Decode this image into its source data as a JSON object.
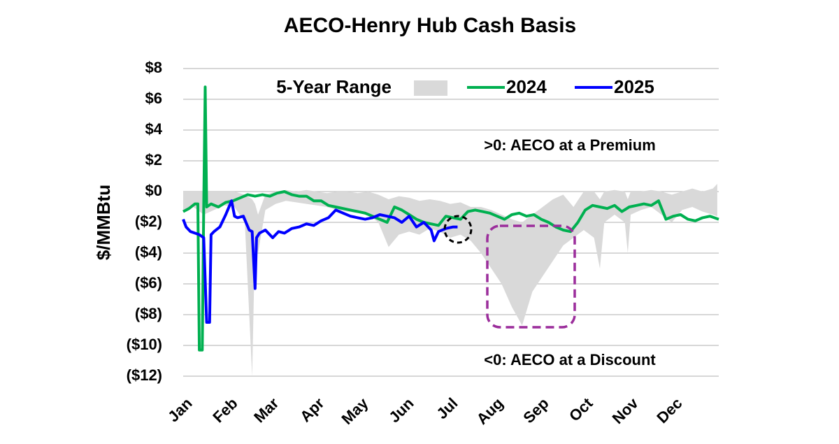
{
  "chart_data": {
    "type": "line",
    "title": "AECO-Henry Hub Cash Basis",
    "y_label": "$/MMBtu",
    "annotations": [
      ">0: AECO at a Premium",
      "<0: AECO at a Discount"
    ],
    "xlim": [
      1,
      366
    ],
    "xticks": [
      {
        "value": 1,
        "label": "Jan"
      },
      {
        "value": 32,
        "label": "Feb"
      },
      {
        "value": 60,
        "label": "Mar"
      },
      {
        "value": 91,
        "label": "Apr"
      },
      {
        "value": 121,
        "label": "May"
      },
      {
        "value": 152,
        "label": "Jun"
      },
      {
        "value": 182,
        "label": "Jul"
      },
      {
        "value": 213,
        "label": "Aug"
      },
      {
        "value": 244,
        "label": "Sep"
      },
      {
        "value": 274,
        "label": "Oct"
      },
      {
        "value": 305,
        "label": "Nov"
      },
      {
        "value": 335,
        "label": "Dec"
      }
    ],
    "ylim": [
      -12,
      8
    ],
    "yticks": [
      {
        "value": -12,
        "label": "($12)"
      },
      {
        "value": -10,
        "label": "($10)"
      },
      {
        "value": -8,
        "label": "($8)"
      },
      {
        "value": -6,
        "label": "($6)"
      },
      {
        "value": -4,
        "label": "($4)"
      },
      {
        "value": -2,
        "label": "($2)"
      },
      {
        "value": 0,
        "label": "$0"
      },
      {
        "value": 2,
        "label": "$2"
      },
      {
        "value": 4,
        "label": "$4"
      },
      {
        "value": 6,
        "label": "$6"
      },
      {
        "value": 8,
        "label": "$8"
      }
    ],
    "grid": true,
    "band": {
      "name": "5-Year Range",
      "color": "#d9d9d9",
      "x": [
        1,
        8,
        15,
        22,
        29,
        36,
        43,
        48,
        50,
        52,
        57,
        64,
        71,
        78,
        85,
        92,
        99,
        106,
        113,
        120,
        127,
        134,
        141,
        148,
        155,
        162,
        169,
        176,
        183,
        190,
        197,
        204,
        211,
        218,
        225,
        232,
        239,
        246,
        253,
        260,
        267,
        274,
        281,
        285,
        288,
        295,
        302,
        304,
        306,
        313,
        320,
        327,
        334,
        341,
        348,
        355,
        362,
        365
      ],
      "high": [
        0,
        0,
        0,
        0,
        0,
        0,
        -0.2,
        -0.5,
        -0.8,
        -1.5,
        -0.2,
        0,
        0.1,
        0,
        0.1,
        0,
        -0.1,
        0,
        0,
        -0.1,
        0,
        -0.2,
        -0.5,
        -0.3,
        -0.4,
        -0.6,
        -0.5,
        -0.6,
        -0.8,
        -0.7,
        -1.0,
        -1.0,
        -1.2,
        -1.5,
        -1.8,
        -2.0,
        -1.5,
        -1.0,
        -0.5,
        -0.2,
        -1.0,
        0,
        0,
        -0.5,
        0,
        0.1,
        0,
        -0.5,
        0,
        0,
        0.1,
        0,
        -0.2,
        0,
        0.2,
        0,
        0.2,
        0.5
      ],
      "low": [
        -1.2,
        -1.0,
        -1.5,
        -1.2,
        -0.9,
        -1.0,
        -2.0,
        -12,
        -3.0,
        -4.0,
        -1.2,
        -0.8,
        -0.6,
        -0.7,
        -0.8,
        -0.9,
        -1.0,
        -1.2,
        -1.3,
        -1.4,
        -1.5,
        -2.0,
        -3.6,
        -2.8,
        -2.6,
        -2.8,
        -2.4,
        -2.6,
        -3.0,
        -2.8,
        -3.2,
        -4.0,
        -5.0,
        -6.0,
        -7.5,
        -8.7,
        -6.5,
        -5.5,
        -4.5,
        -3.5,
        -3.0,
        -2.5,
        -3.0,
        -5.0,
        -2.0,
        -1.5,
        -2.0,
        -4.0,
        -1.5,
        -1.2,
        -1.0,
        -1.5,
        -2.0,
        -1.2,
        -1.0,
        -1.3,
        -1.5,
        -1.6
      ]
    },
    "series": [
      {
        "name": "2024",
        "color": "#00b050",
        "x": [
          1,
          5,
          9,
          11,
          12,
          13,
          14,
          15,
          16,
          17,
          20,
          25,
          30,
          35,
          40,
          45,
          50,
          55,
          60,
          65,
          70,
          75,
          80,
          85,
          90,
          95,
          100,
          105,
          110,
          115,
          120,
          125,
          130,
          135,
          140,
          145,
          150,
          155,
          160,
          165,
          170,
          175,
          180,
          185,
          190,
          195,
          200,
          205,
          210,
          215,
          220,
          225,
          230,
          235,
          240,
          245,
          250,
          255,
          260,
          265,
          270,
          275,
          280,
          285,
          290,
          295,
          300,
          305,
          310,
          315,
          320,
          325,
          330,
          335,
          340,
          345,
          350,
          355,
          360,
          366
        ],
        "values": [
          -1.3,
          -1.1,
          -0.8,
          -0.8,
          -10.3,
          -10.3,
          -10.3,
          -1.0,
          6.8,
          -1.0,
          -0.8,
          -1.0,
          -0.7,
          -0.6,
          -0.4,
          -0.2,
          -0.3,
          -0.2,
          -0.3,
          -0.1,
          0.0,
          -0.2,
          -0.3,
          -0.3,
          -0.6,
          -0.6,
          -0.9,
          -1.0,
          -1.1,
          -1.2,
          -1.3,
          -1.4,
          -1.6,
          -1.8,
          -2.0,
          -1.0,
          -1.2,
          -1.5,
          -1.8,
          -2.0,
          -2.1,
          -2.2,
          -1.6,
          -1.7,
          -1.8,
          -1.3,
          -1.2,
          -1.3,
          -1.4,
          -1.6,
          -1.8,
          -1.5,
          -1.4,
          -1.6,
          -1.5,
          -1.8,
          -2.0,
          -2.3,
          -2.5,
          -2.6,
          -2.0,
          -1.2,
          -0.9,
          -1.0,
          -1.1,
          -0.9,
          -1.3,
          -1.0,
          -0.9,
          -0.8,
          -0.9,
          -0.6,
          -1.8,
          -1.6,
          -1.5,
          -1.8,
          -1.9,
          -1.7,
          -1.6,
          -1.8
        ]
      },
      {
        "name": "2025",
        "color": "#0000ff",
        "x": [
          1,
          3,
          6,
          9,
          12,
          15,
          17,
          18,
          19,
          20,
          22,
          26,
          30,
          34,
          36,
          38,
          42,
          46,
          48,
          50,
          51,
          53,
          57,
          62,
          66,
          70,
          75,
          80,
          85,
          90,
          95,
          100,
          105,
          110,
          115,
          120,
          125,
          130,
          135,
          140,
          145,
          150,
          155,
          160,
          165,
          170,
          172,
          175,
          180,
          185,
          188
        ],
        "values": [
          -1.8,
          -2.3,
          -2.6,
          -2.7,
          -2.8,
          -3.0,
          -8.5,
          -8.5,
          -8.5,
          -2.8,
          -2.6,
          -2.3,
          -1.5,
          -0.6,
          -1.6,
          -1.7,
          -1.6,
          -2.5,
          -2.6,
          -6.3,
          -3.0,
          -2.7,
          -2.5,
          -3.0,
          -2.6,
          -2.7,
          -2.4,
          -2.3,
          -2.1,
          -2.2,
          -1.9,
          -1.7,
          -1.2,
          -1.4,
          -1.6,
          -1.7,
          -1.8,
          -1.7,
          -1.5,
          -1.6,
          -1.7,
          -2.0,
          -1.6,
          -2.3,
          -2.0,
          -2.5,
          -3.2,
          -2.6,
          -2.4,
          -2.3,
          -2.3
        ]
      }
    ]
  }
}
